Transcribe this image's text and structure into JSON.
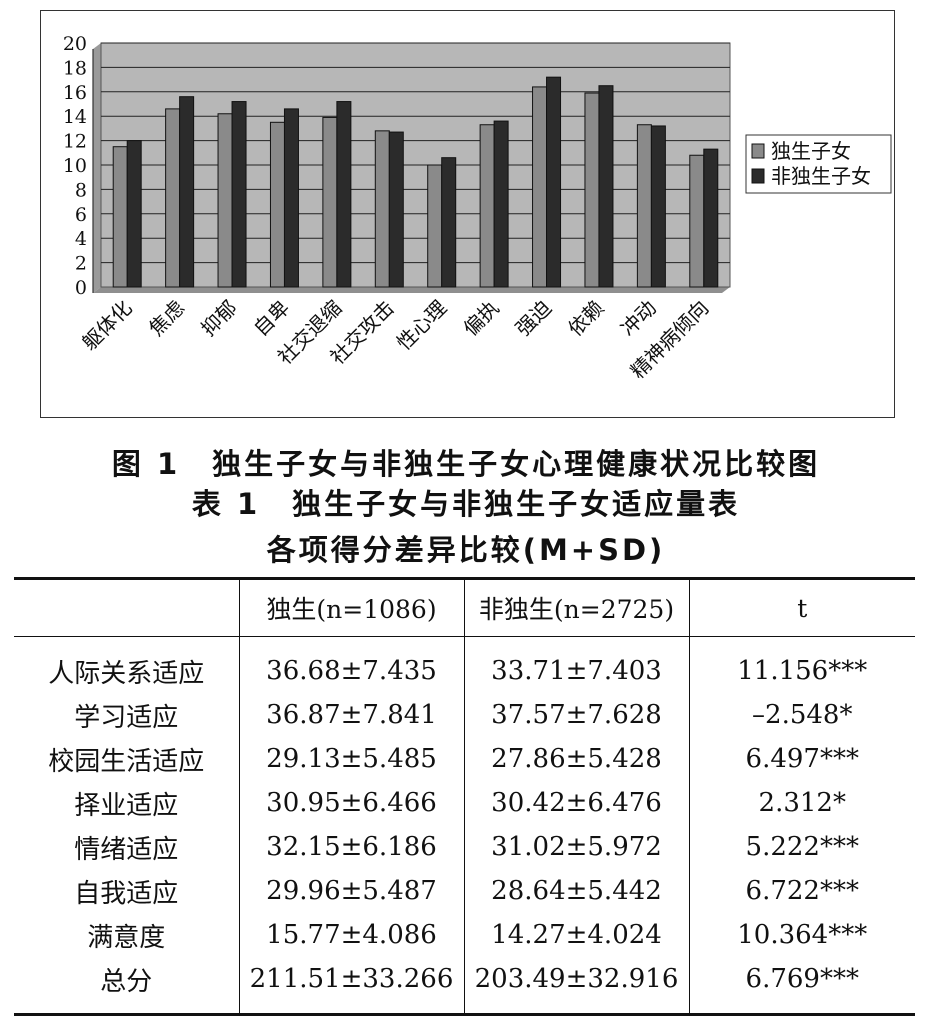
{
  "chart_data": {
    "type": "bar",
    "categories": [
      "躯体化",
      "焦虑",
      "抑郁",
      "自卑",
      "社交退缩",
      "社交攻击",
      "性心理",
      "偏执",
      "强迫",
      "依赖",
      "冲动",
      "精神病倾向"
    ],
    "series": [
      {
        "name": "独生子女",
        "color": "#8a8a8a",
        "values": [
          11.5,
          14.6,
          14.2,
          13.5,
          13.9,
          12.8,
          10.0,
          13.3,
          16.4,
          15.9,
          13.3,
          10.8
        ]
      },
      {
        "name": "非独生子女",
        "color": "#2b2b2b",
        "values": [
          12.0,
          15.6,
          15.2,
          14.6,
          15.2,
          12.7,
          10.6,
          13.6,
          17.2,
          16.5,
          13.2,
          11.3
        ]
      }
    ],
    "yticks": [
      "0",
      "2",
      "4",
      "6",
      "8",
      "10",
      "12",
      "14",
      "16",
      "18",
      "20"
    ],
    "ylim": [
      0,
      20
    ],
    "grid": true,
    "legend_position": "right",
    "plot_background": "#b7b7b7"
  },
  "figure_caption": "图 1　独生子女与非独生子女心理健康状况比较图",
  "table_caption_line1": "表 1　独生子女与非独生子女适应量表",
  "table_caption_line2": "各项得分差异比较(M+SD)",
  "table": {
    "headers": [
      "",
      "独生(n=1086)",
      "非独生(n=2725)",
      "t"
    ],
    "rows": [
      [
        "人际关系适应",
        "36.68±7.435",
        "33.71±7.403",
        "11.156***"
      ],
      [
        "学习适应",
        "36.87±7.841",
        "37.57±7.628",
        "–2.548*"
      ],
      [
        "校园生活适应",
        "29.13±5.485",
        "27.86±5.428",
        "6.497***"
      ],
      [
        "择业适应",
        "30.95±6.466",
        "30.42±6.476",
        "2.312*"
      ],
      [
        "情绪适应",
        "32.15±6.186",
        "31.02±5.972",
        "5.222***"
      ],
      [
        "自我适应",
        "29.96±5.487",
        "28.64±5.442",
        "6.722***"
      ],
      [
        "满意度",
        "15.77±4.086",
        "14.27±4.024",
        "10.364***"
      ],
      [
        "总分",
        "211.51±33.266",
        "203.49±32.916",
        "6.769***"
      ]
    ]
  }
}
